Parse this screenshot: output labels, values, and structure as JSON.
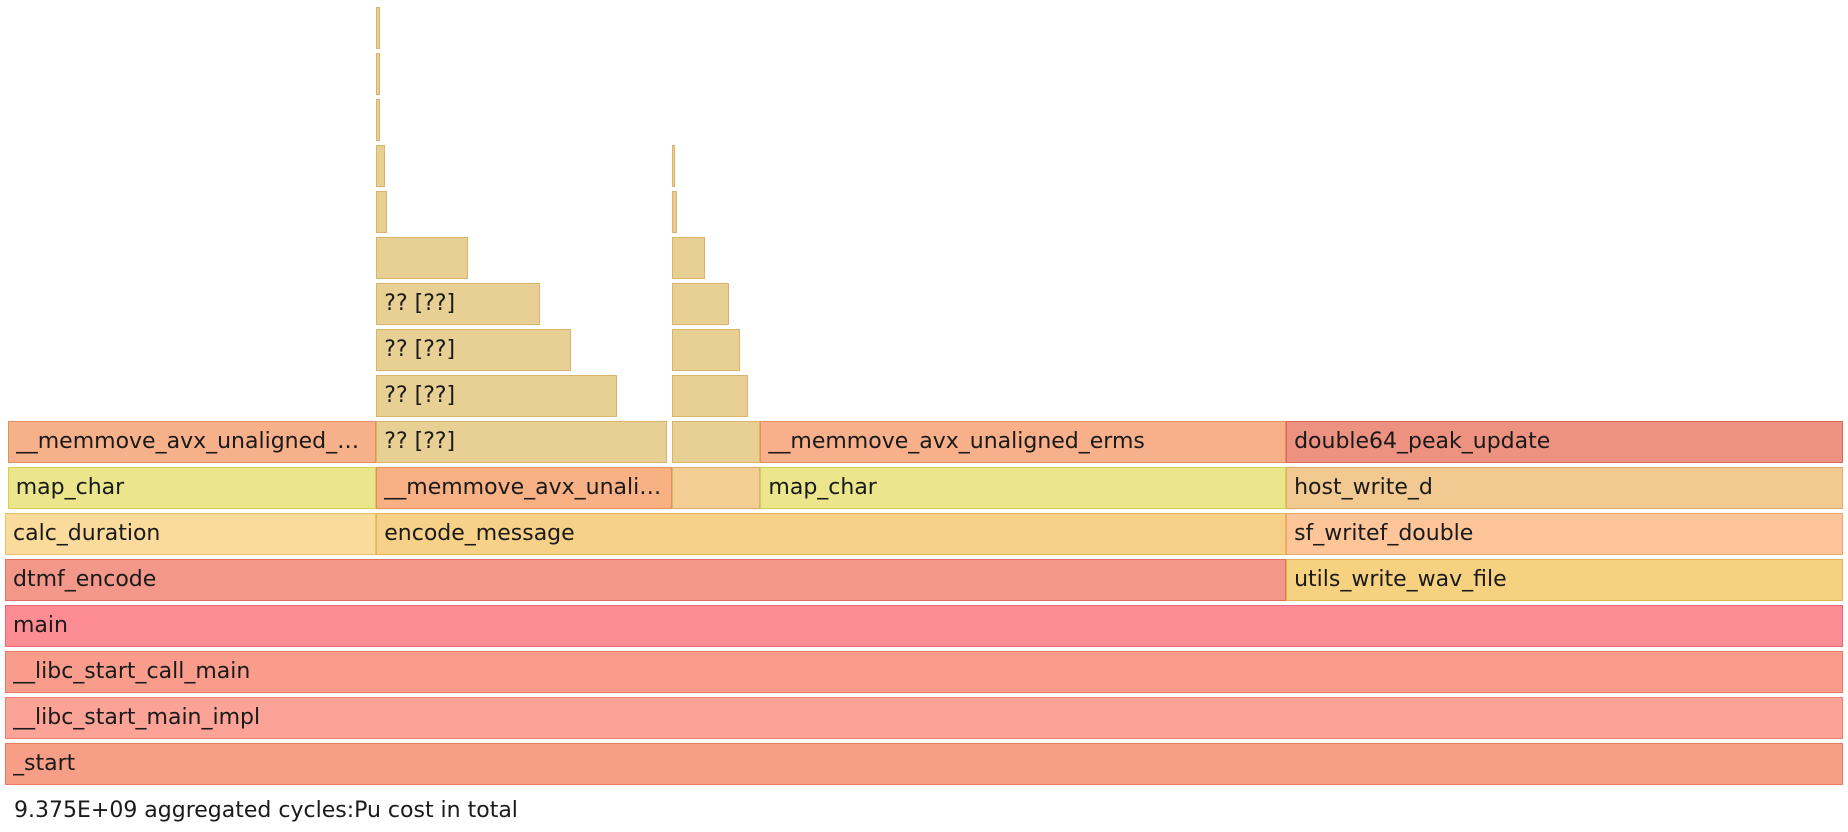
{
  "chart_data": {
    "type": "flamegraph",
    "total_label": "9.375E+09 aggregated cycles:Pu cost in total",
    "frames": [
      {
        "name": "_start",
        "label": "_start",
        "depth": 0,
        "start": 0.0,
        "width": 1.0,
        "color": "#f79e87",
        "border": "#e87a62"
      },
      {
        "name": "__libc_start_main_impl",
        "label": "__libc_start_main_impl",
        "depth": 1,
        "start": 0.0,
        "width": 1.0,
        "color": "#fba397",
        "border": "#ec7f70"
      },
      {
        "name": "__libc_start_call_main",
        "label": "__libc_start_call_main",
        "depth": 2,
        "start": 0.0,
        "width": 1.0,
        "color": "#fa9c8c",
        "border": "#ea7865"
      },
      {
        "name": "main",
        "label": "main",
        "depth": 3,
        "start": 0.0,
        "width": 1.0,
        "color": "#fd8d93",
        "border": "#e8677a"
      },
      {
        "name": "dtmf_encode",
        "label": "dtmf_encode",
        "depth": 4,
        "start": 0.0,
        "width": 0.697,
        "color": "#f29789",
        "border": "#dd7062"
      },
      {
        "name": "utils_write_wav_file",
        "label": "utils_write_wav_file",
        "depth": 4,
        "start": 0.697,
        "width": 0.303,
        "color": "#f6d17f",
        "border": "#e0b05a"
      },
      {
        "name": "calc_duration",
        "label": "calc_duration",
        "depth": 5,
        "start": 0.0,
        "width": 0.202,
        "color": "#fadb9b",
        "border": "#e8c070"
      },
      {
        "name": "encode_message",
        "label": "encode_message",
        "depth": 5,
        "start": 0.202,
        "width": 0.495,
        "color": "#f6d187",
        "border": "#e3b45e"
      },
      {
        "name": "sf_writef_double",
        "label": "sf_writef_double",
        "depth": 5,
        "start": 0.697,
        "width": 0.303,
        "color": "#fdc598",
        "border": "#eca672"
      },
      {
        "name": "map_char",
        "label": "map_char",
        "depth": 6,
        "start": 0.0015,
        "width": 0.2005,
        "color": "#ebe58b",
        "border": "#d3cc5e"
      },
      {
        "name": "__memmove_avx_unaligned_erms",
        "label": "__memmove_avx_unali…",
        "depth": 6,
        "start": 0.202,
        "width": 0.161,
        "color": "#f7b184",
        "border": "#e48e5c"
      },
      {
        "name": "",
        "label": "",
        "depth": 6,
        "start": 0.363,
        "width": 0.048,
        "color": "#f2cd94",
        "border": "#dfb06a"
      },
      {
        "name": "map_char",
        "label": "map_char",
        "depth": 6,
        "start": 0.411,
        "width": 0.286,
        "color": "#ebe58b",
        "border": "#d3cc5e"
      },
      {
        "name": "host_write_d",
        "label": "host_write_d",
        "depth": 6,
        "start": 0.697,
        "width": 0.303,
        "color": "#f2c990",
        "border": "#dfac66"
      },
      {
        "name": "__memmove_avx_unaligned_erms",
        "label": "__memmove_avx_unaligned_…",
        "depth": 7,
        "start": 0.0015,
        "width": 0.2005,
        "color": "#f6b08a",
        "border": "#e48d62"
      },
      {
        "name": "?? [??]",
        "label": "?? [??]",
        "depth": 7,
        "start": 0.202,
        "width": 0.158,
        "color": "#e8cf94",
        "border": "#d9b46a"
      },
      {
        "name": "",
        "label": "",
        "depth": 7,
        "start": 0.363,
        "width": 0.048,
        "color": "#e8cf94",
        "border": "#d9b46a"
      },
      {
        "name": "__memmove_avx_unaligned_erms",
        "label": "__memmove_avx_unaligned_erms",
        "depth": 7,
        "start": 0.411,
        "width": 0.286,
        "color": "#f7b08a",
        "border": "#e48d62"
      },
      {
        "name": "double64_peak_update",
        "label": "double64_peak_update",
        "depth": 7,
        "start": 0.697,
        "width": 0.303,
        "color": "#ed9180",
        "border": "#d86a5a"
      },
      {
        "name": "?? [??]",
        "label": "?? [??]",
        "depth": 8,
        "start": 0.202,
        "width": 0.131,
        "color": "#e8cf94",
        "border": "#d9b46a"
      },
      {
        "name": "",
        "label": "",
        "depth": 8,
        "start": 0.363,
        "width": 0.041,
        "color": "#e8cf94",
        "border": "#d9b46a"
      },
      {
        "name": "?? [??]",
        "label": "?? [??]",
        "depth": 9,
        "start": 0.202,
        "width": 0.106,
        "color": "#e8cf94",
        "border": "#d9b46a"
      },
      {
        "name": "",
        "label": "",
        "depth": 9,
        "start": 0.363,
        "width": 0.037,
        "color": "#e8cf94",
        "border": "#d9b46a"
      },
      {
        "name": "?? [??]",
        "label": "?? [??]",
        "depth": 10,
        "start": 0.202,
        "width": 0.089,
        "color": "#e8cf94",
        "border": "#d9b46a"
      },
      {
        "name": "",
        "label": "",
        "depth": 10,
        "start": 0.363,
        "width": 0.031,
        "color": "#e8cf94",
        "border": "#d9b46a"
      },
      {
        "name": "",
        "label": "",
        "depth": 11,
        "start": 0.202,
        "width": 0.05,
        "color": "#e8cf94",
        "border": "#d9b46a"
      },
      {
        "name": "",
        "label": "",
        "depth": 11,
        "start": 0.363,
        "width": 0.018,
        "color": "#e8cf94",
        "border": "#d9b46a"
      },
      {
        "name": "",
        "label": "",
        "depth": 12,
        "start": 0.202,
        "width": 0.006,
        "color": "#e8cf94",
        "border": "#d9b46a"
      },
      {
        "name": "",
        "label": "",
        "depth": 12,
        "start": 0.363,
        "width": 0.0025,
        "color": "#e8cf94",
        "border": "#d9b46a"
      },
      {
        "name": "",
        "label": "",
        "depth": 13,
        "start": 0.202,
        "width": 0.0045,
        "color": "#e8cf94",
        "border": "#d9b46a"
      },
      {
        "name": "",
        "label": "",
        "depth": 13,
        "start": 0.363,
        "width": 0.0018,
        "color": "#e8cf94",
        "border": "#d9b46a"
      },
      {
        "name": "",
        "label": "",
        "depth": 14,
        "start": 0.202,
        "width": 0.0018,
        "color": "#e8cf94",
        "border": "#d9b46a"
      },
      {
        "name": "",
        "label": "",
        "depth": 15,
        "start": 0.202,
        "width": 0.0018,
        "color": "#e8cf94",
        "border": "#d9b46a"
      },
      {
        "name": "",
        "label": "",
        "depth": 16,
        "start": 0.202,
        "width": 0.0018,
        "color": "#e8cf94",
        "border": "#d9b46a"
      }
    ]
  }
}
